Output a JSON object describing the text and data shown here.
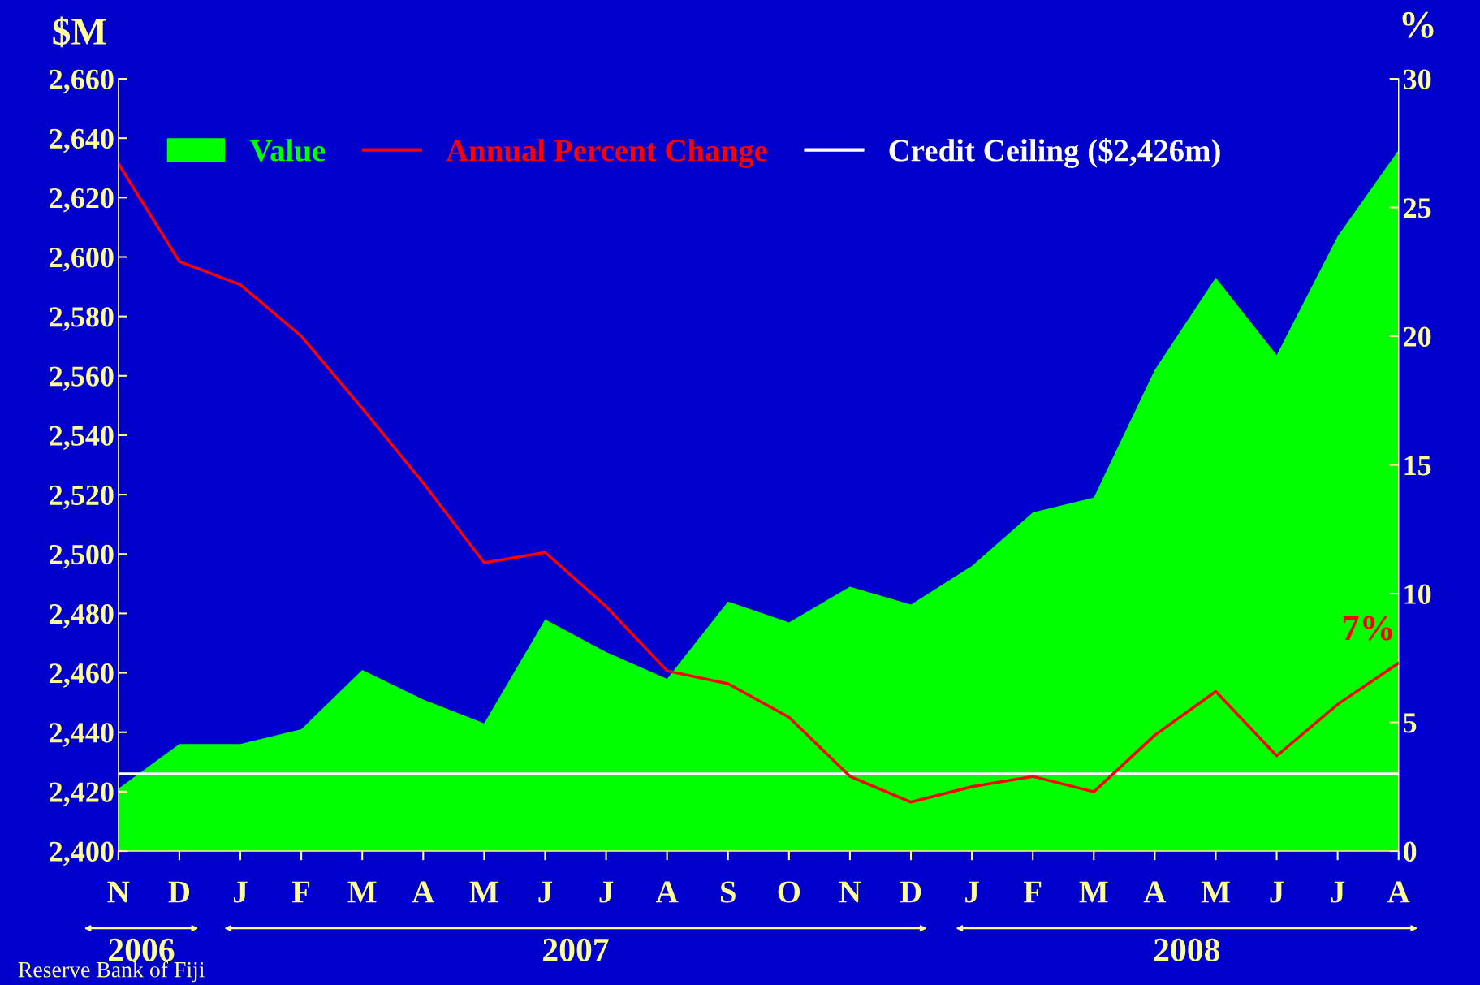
{
  "chart_data": {
    "type": "area",
    "categories": [
      "N",
      "D",
      "J",
      "F",
      "M",
      "A",
      "M",
      "J",
      "J",
      "A",
      "S",
      "O",
      "N",
      "D",
      "J",
      "F",
      "M",
      "A",
      "M",
      "J",
      "J",
      "A"
    ],
    "series": [
      {
        "name": "Value",
        "color": "#00ff00",
        "values": [
          2421,
          2436,
          2436,
          2441,
          2461,
          2451,
          2443,
          2478,
          2467,
          2458,
          2484,
          2477,
          2489,
          2483,
          2496,
          2514,
          2519,
          2562,
          2593,
          2567,
          2607,
          2636
        ]
      },
      {
        "name": "Annual Percent Change",
        "type": "line",
        "axis": "y2",
        "color": "#ff0000",
        "values": [
          26.7,
          22.9,
          22.0,
          20.0,
          17.2,
          14.3,
          11.2,
          11.6,
          9.5,
          7.0,
          6.5,
          5.2,
          2.9,
          1.9,
          2.5,
          2.9,
          2.3,
          4.5,
          6.2,
          3.7,
          5.7,
          7.3
        ]
      }
    ],
    "ylabel": "$M",
    "y2label": "%",
    "ylim": [
      2400,
      2660
    ],
    "yticks": [
      {
        "value": 2400,
        "label": "2,400"
      },
      {
        "value": 2420,
        "label": "2,420"
      },
      {
        "value": 2440,
        "label": "2,440"
      },
      {
        "value": 2460,
        "label": "2,460"
      },
      {
        "value": 2480,
        "label": "2,480"
      },
      {
        "value": 2500,
        "label": "2,500"
      },
      {
        "value": 2520,
        "label": "2,520"
      },
      {
        "value": 2540,
        "label": "2,540"
      },
      {
        "value": 2560,
        "label": "2,560"
      },
      {
        "value": 2580,
        "label": "2,580"
      },
      {
        "value": 2600,
        "label": "2,600"
      },
      {
        "value": 2620,
        "label": "2,620"
      },
      {
        "value": 2640,
        "label": "2,640"
      },
      {
        "value": 2660,
        "label": "2,660"
      }
    ],
    "y2lim": [
      0,
      30
    ],
    "y2ticks": [
      0,
      5,
      10,
      15,
      20,
      25,
      30
    ],
    "ref_lines": [
      {
        "axis": "y",
        "value": 2426,
        "label": "Credit Ceiling ($2,426m)",
        "color": "#ffffff"
      }
    ],
    "annotations": [
      "7%",
      "2006",
      "2007",
      "2008",
      "Reserve Bank of Fiji"
    ],
    "legend": "top",
    "grid": false
  }
}
